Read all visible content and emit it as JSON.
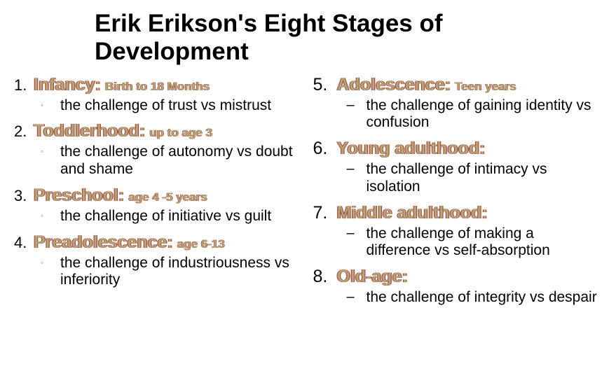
{
  "title": "Erik Erikson's Eight Stages of Development",
  "colors": {
    "heading_fill": "#b2a875",
    "heading_shadow": "#a94040",
    "text": "#000000",
    "background": "#ffffff"
  },
  "typography": {
    "title_fontsize": 35,
    "stage_fontsize": 25,
    "age_fontsize": 17,
    "body_fontsize": 21
  },
  "left_bullet": "◦",
  "right_bullet": "–",
  "stages_left": [
    {
      "num": "1.",
      "name": "Infancy:",
      "age": "Birth to 18 Months",
      "challenge": "the challenge of trust vs mistrust"
    },
    {
      "num": "2.",
      "name": "Toddlerhood:",
      "age": "up to age 3",
      "challenge": "the challenge of autonomy vs doubt and shame"
    },
    {
      "num": "3.",
      "name": "Preschool:",
      "age": "age 4 -5 years",
      "challenge": "the challenge of initiative vs guilt"
    },
    {
      "num": "4.",
      "name": "Preadolescence:",
      "age": "age 6-13",
      "challenge": "the challenge of industriousness vs inferiority"
    }
  ],
  "stages_right": [
    {
      "num": "5.",
      "name": "Adolescence:",
      "age": "Teen years",
      "challenge": "the challenge of gaining identity vs confusion"
    },
    {
      "num": "6.",
      "name": "Young adulthood:",
      "age": "",
      "challenge": "the challenge of intimacy vs isolation"
    },
    {
      "num": "7.",
      "name": "Middle adulthood:",
      "age": "",
      "challenge": "the challenge of making a difference vs self-absorption"
    },
    {
      "num": "8.",
      "name": "Old-age:",
      "age": "",
      "challenge": "the challenge of integrity vs despair"
    }
  ]
}
